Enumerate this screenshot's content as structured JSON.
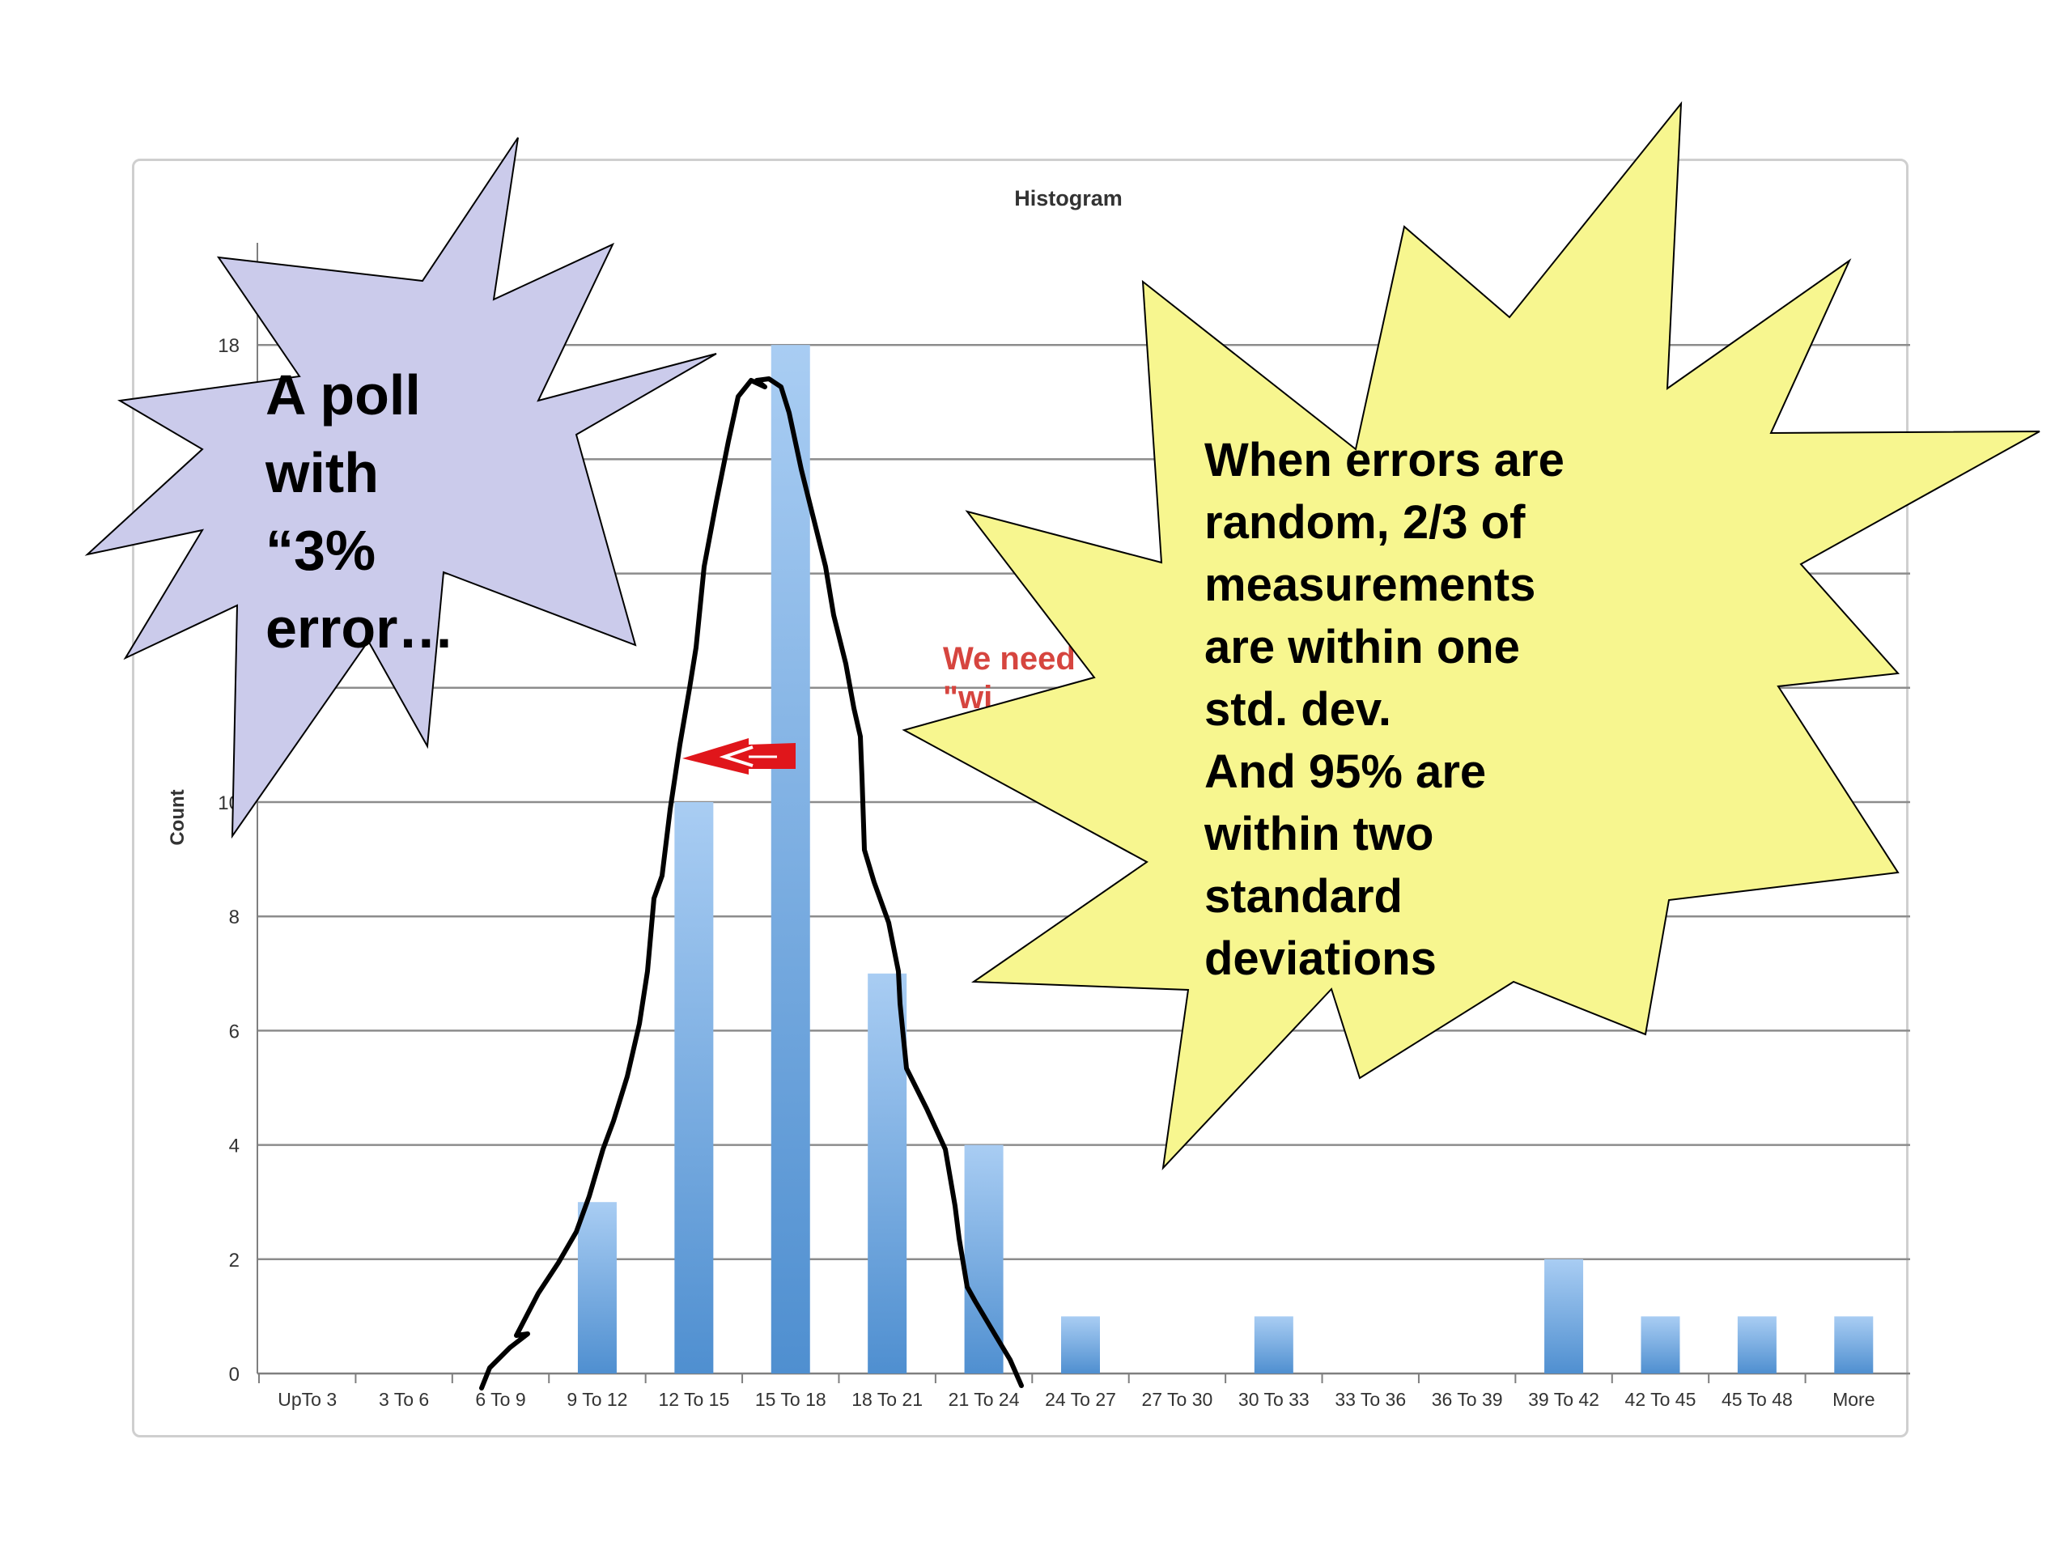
{
  "chart_data": {
    "type": "bar",
    "title": "Histogram",
    "xlabel": "",
    "ylabel": "Count",
    "ylim": [
      0,
      18
    ],
    "y_ticks": [
      "0",
      "2",
      "4",
      "6",
      "8",
      "10",
      "18"
    ],
    "grid": true,
    "categories": [
      "UpTo 3",
      "3 To 6",
      "6 To 9",
      "9 To 12",
      "12 To 15",
      "15 To 18",
      "18 To 21",
      "21 To 24",
      "24 To 27",
      "27 To 30",
      "30 To 33",
      "33 To 36",
      "36 To 39",
      "39 To 42",
      "42 To 45",
      "45 To 48",
      "More"
    ],
    "values": [
      0,
      0,
      0,
      3,
      10,
      18,
      7,
      4,
      1,
      0,
      1,
      0,
      0,
      2,
      1,
      1,
      1
    ],
    "bar_color": "#5b9bd5",
    "bar_color_light": "#a9cdf3",
    "annotations": {
      "hidden_note_lines": [
        "We need",
        "\"wi"
      ]
    }
  },
  "callouts": {
    "left": {
      "lines": [
        "A poll",
        "with",
        "“3%",
        "error…"
      ],
      "fill": "#cbcbeb"
    },
    "right": {
      "lines": [
        "When errors are",
        "random, 2/3 of",
        "measurements",
        "are within one",
        "std. dev.",
        "And 95% are",
        "within two",
        "standard",
        "deviations"
      ],
      "fill": "#f7f68f"
    }
  },
  "drawing": {
    "curve_color": "#000000",
    "arrow_color": "#e0161b"
  }
}
